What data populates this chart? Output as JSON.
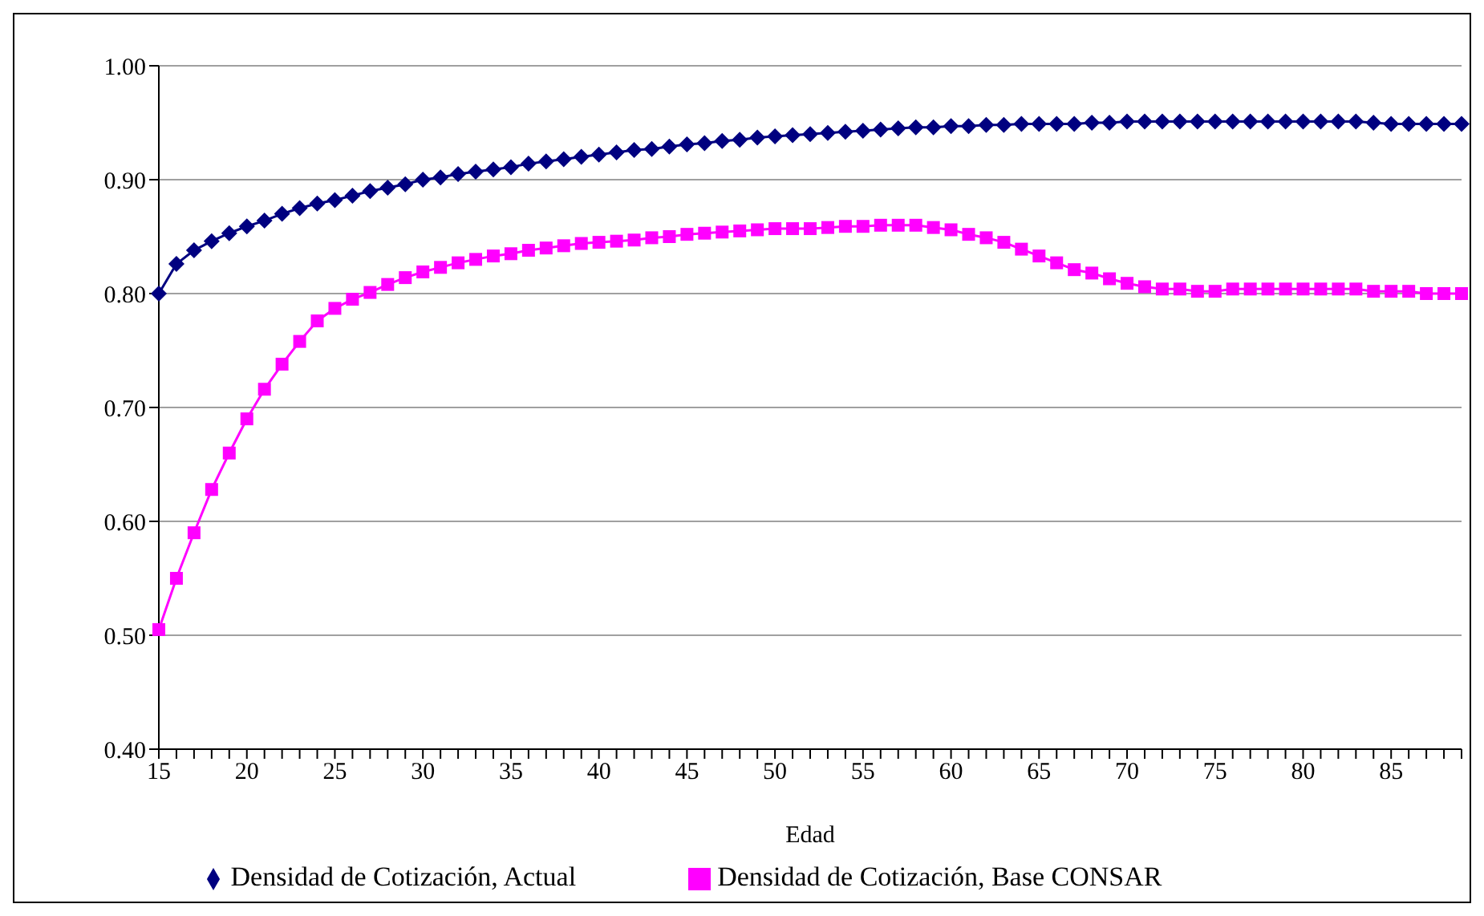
{
  "chart_data": {
    "type": "line",
    "xlabel": "Edad",
    "categories": [
      "15",
      null,
      null,
      null,
      null,
      "20",
      null,
      null,
      null,
      null,
      "25",
      null,
      null,
      null,
      null,
      "30",
      null,
      null,
      null,
      null,
      "35",
      null,
      null,
      null,
      null,
      "40",
      null,
      null,
      null,
      null,
      "45",
      null,
      null,
      null,
      null,
      "50",
      null,
      null,
      null,
      null,
      "55",
      null,
      null,
      null,
      null,
      "60",
      null,
      null,
      null,
      null,
      "65",
      null,
      null,
      null,
      null,
      "70",
      null,
      null,
      null,
      null,
      "75",
      null,
      null,
      null,
      null,
      "80",
      null,
      null,
      null,
      null,
      "85",
      null,
      null,
      null,
      null
    ],
    "series": [
      {
        "name": "Densidad de Cotización, Actual",
        "color": "#000080",
        "marker": "diamond",
        "values": [
          0.8,
          0.826,
          0.838,
          0.846,
          0.853,
          0.859,
          0.864,
          0.87,
          0.875,
          0.879,
          0.882,
          0.886,
          0.89,
          0.893,
          0.896,
          0.9,
          0.902,
          0.905,
          0.907,
          0.909,
          0.911,
          0.914,
          0.916,
          0.918,
          0.92,
          0.922,
          0.924,
          0.926,
          0.927,
          0.929,
          0.931,
          0.932,
          0.934,
          0.935,
          0.937,
          0.938,
          0.939,
          0.94,
          0.941,
          0.942,
          0.943,
          0.944,
          0.945,
          0.946,
          0.946,
          0.947,
          0.947,
          0.948,
          0.948,
          0.949,
          0.949,
          0.949,
          0.949,
          0.95,
          0.95,
          0.951,
          0.951,
          0.951,
          0.951,
          0.951,
          0.951,
          0.951,
          0.951,
          0.951,
          0.951,
          0.951,
          0.951,
          0.951,
          0.951,
          0.95,
          0.949,
          0.949,
          0.949,
          0.949,
          0.949
        ]
      },
      {
        "name": "Densidad de Cotización, Base CONSAR",
        "color": "#ff00ff",
        "marker": "square",
        "values": [
          0.505,
          0.55,
          0.59,
          0.628,
          0.66,
          0.69,
          0.716,
          0.738,
          0.758,
          0.776,
          0.787,
          0.795,
          0.801,
          0.808,
          0.814,
          0.819,
          0.823,
          0.827,
          0.83,
          0.833,
          0.835,
          0.838,
          0.84,
          0.842,
          0.844,
          0.845,
          0.846,
          0.847,
          0.849,
          0.85,
          0.852,
          0.853,
          0.854,
          0.855,
          0.856,
          0.857,
          0.857,
          0.857,
          0.858,
          0.859,
          0.859,
          0.86,
          0.86,
          0.86,
          0.858,
          0.856,
          0.852,
          0.849,
          0.845,
          0.839,
          0.833,
          0.827,
          0.821,
          0.818,
          0.813,
          0.809,
          0.806,
          0.804,
          0.804,
          0.802,
          0.802,
          0.804,
          0.804,
          0.804,
          0.804,
          0.804,
          0.804,
          0.804,
          0.804,
          0.802,
          0.802,
          0.802,
          0.8,
          0.8,
          0.8
        ]
      }
    ],
    "ylim": [
      0.4,
      1.0
    ],
    "yticks": [
      {
        "value": 0.4,
        "label": "0.40"
      },
      {
        "value": 0.5,
        "label": "0.50"
      },
      {
        "value": 0.6,
        "label": "0.60"
      },
      {
        "value": 0.7,
        "label": "0.70"
      },
      {
        "value": 0.8,
        "label": "0.80"
      },
      {
        "value": 0.9,
        "label": "0.90"
      },
      {
        "value": 1.0,
        "label": "1.00"
      }
    ],
    "grid": "y",
    "legend": "bottom",
    "line_style": "solid"
  }
}
